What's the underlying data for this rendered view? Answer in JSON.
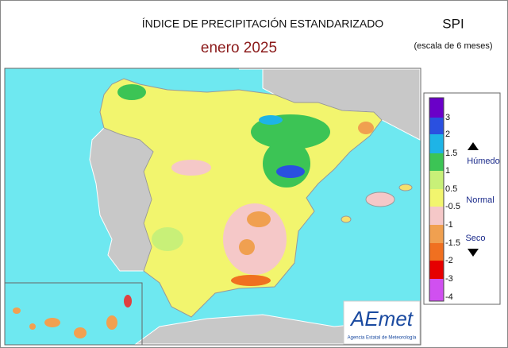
{
  "header": {
    "title": "ÍNDICE DE PRECIPITACIÓN ESTANDARIZADO",
    "period": "enero  2025",
    "index": "SPI",
    "scale": "(escala de 6 meses)"
  },
  "legend": {
    "labels": [
      "3",
      "2",
      "1.5",
      "1",
      "0.5",
      "-0.5",
      "-1",
      "-1.5",
      "-2",
      "-3",
      "-4"
    ],
    "wet": "Húmedo",
    "normal": "Normal",
    "dry": "Seco"
  },
  "logo": {
    "name": "AEmet",
    "agency": "Agencia Estatal de Meteorología"
  }
}
